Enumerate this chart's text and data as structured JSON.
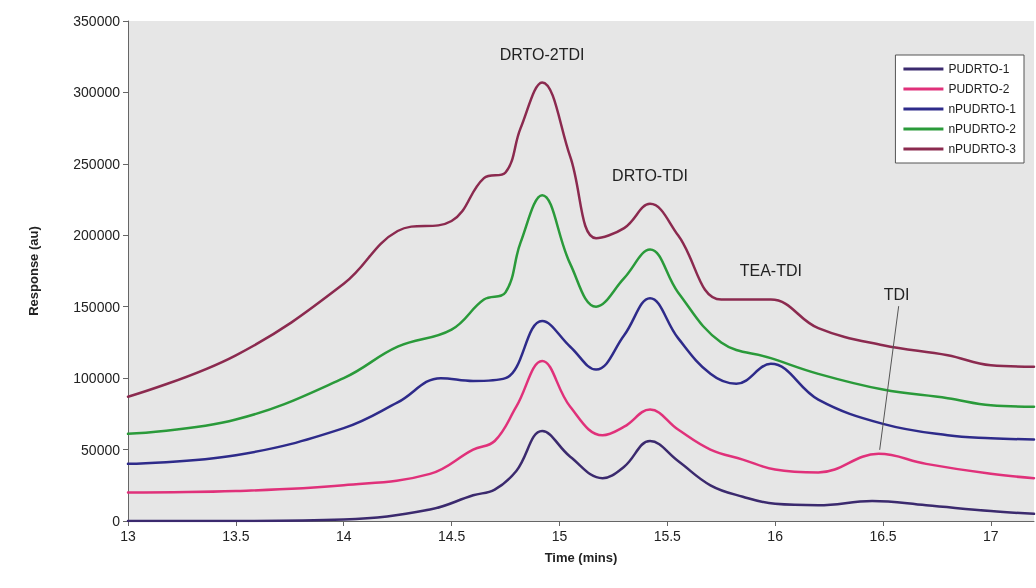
{
  "chart_data": {
    "type": "line",
    "xlabel": "Time (mins)",
    "ylabel": "Response (au)",
    "xlim": [
      13,
      17.2
    ],
    "xticks": [
      13,
      13.5,
      14,
      14.5,
      15,
      15.5,
      16,
      16.5,
      17
    ],
    "ylim": [
      0,
      350000
    ],
    "yticks": [
      0,
      50000,
      100000,
      150000,
      200000,
      250000,
      300000,
      350000
    ],
    "grid": false,
    "legend": "top right",
    "marker": "none",
    "line_style": "solid",
    "annotations": [
      {
        "text": "DRTO-2TDI",
        "x": 14.92,
        "y": 307000
      },
      {
        "text": "DRTO-TDI",
        "x": 15.42,
        "y": 222000
      },
      {
        "text": "TEA-TDI",
        "x": 15.98,
        "y": 156000
      },
      {
        "text": "TDI",
        "x": 16.48,
        "y": 47000
      }
    ],
    "series": [
      {
        "name": "PUDRTO-1",
        "color": "#3b2a6e",
        "x": [
          13,
          13.5,
          14,
          14.4,
          14.6,
          14.7,
          14.8,
          14.92,
          15.05,
          15.2,
          15.3,
          15.42,
          15.55,
          15.7,
          15.85,
          16,
          16.2,
          16.45,
          16.7,
          17,
          17.2
        ],
        "values": [
          0,
          0,
          1000,
          8000,
          18000,
          22000,
          35000,
          63000,
          45000,
          30000,
          38000,
          56000,
          42000,
          25000,
          17000,
          12000,
          11000,
          14000,
          11000,
          7000,
          5000
        ]
      },
      {
        "name": "PUDRTO-2",
        "color": "#e0317a",
        "x": [
          13,
          13.5,
          14,
          14.4,
          14.6,
          14.7,
          14.8,
          14.92,
          15.05,
          15.2,
          15.3,
          15.42,
          15.55,
          15.7,
          15.85,
          16,
          16.2,
          16.48,
          16.7,
          17,
          17.2
        ],
        "values": [
          20000,
          21000,
          25000,
          33000,
          50000,
          56000,
          80000,
          112000,
          80000,
          60000,
          66000,
          78000,
          64000,
          50000,
          43000,
          36000,
          34000,
          47000,
          40000,
          33000,
          30000
        ]
      },
      {
        "name": "nPUDRTO-1",
        "color": "#2e2b8a",
        "x": [
          13,
          13.5,
          14,
          14.25,
          14.45,
          14.6,
          14.75,
          14.92,
          15.05,
          15.17,
          15.3,
          15.42,
          15.55,
          15.7,
          15.82,
          15.98,
          16.2,
          16.5,
          16.8,
          17,
          17.2
        ],
        "values": [
          40000,
          46000,
          65000,
          83000,
          100000,
          98000,
          100000,
          140000,
          122000,
          106000,
          130000,
          156000,
          128000,
          103000,
          96000,
          110000,
          85000,
          68000,
          60000,
          58000,
          57000
        ]
      },
      {
        "name": "nPUDRTO-2",
        "color": "#2a9a3a",
        "x": [
          13,
          13.5,
          14,
          14.25,
          14.5,
          14.65,
          14.75,
          14.82,
          14.92,
          15.05,
          15.17,
          15.3,
          15.42,
          15.55,
          15.75,
          15.98,
          16.2,
          16.5,
          16.8,
          17,
          17.2
        ],
        "values": [
          61000,
          71000,
          100000,
          122000,
          134000,
          155000,
          160000,
          195000,
          228000,
          180000,
          150000,
          170000,
          190000,
          160000,
          125000,
          114000,
          103000,
          92000,
          86000,
          81000,
          80000
        ]
      },
      {
        "name": "nPUDRTO-3",
        "color": "#8b2a4f",
        "x": [
          13,
          13.5,
          14,
          14.25,
          14.5,
          14.65,
          14.75,
          14.82,
          14.92,
          15.05,
          15.17,
          15.3,
          15.42,
          15.55,
          15.75,
          15.98,
          16.2,
          16.5,
          16.8,
          17,
          17.2
        ],
        "values": [
          87000,
          116000,
          166000,
          203000,
          210000,
          240000,
          244000,
          275000,
          307000,
          255000,
          198000,
          205000,
          222000,
          200000,
          155000,
          155000,
          135000,
          123000,
          116000,
          109000,
          108000
        ]
      }
    ]
  }
}
